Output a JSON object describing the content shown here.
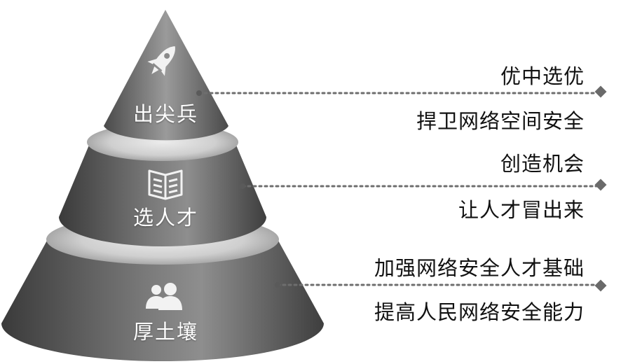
{
  "colors": {
    "cone_dark": "#3a3a3a",
    "cone_mid": "#8c8c8c",
    "cone_light": "#d0d0d0",
    "dotted_line": "#6e6e6e",
    "diamond": "#6a6a6a",
    "icon": "#f2f2f2",
    "text": "#111111"
  },
  "tiers": [
    {
      "icon": "rocket-icon",
      "label": "出尖兵",
      "lines": [
        "优中选优",
        "捍卫网络空间安全"
      ]
    },
    {
      "icon": "book-icon",
      "label": "选人才",
      "lines": [
        "创造机会",
        "让人才冒出来"
      ]
    },
    {
      "icon": "users-icon",
      "label": "厚土壤",
      "lines": [
        "加强网络安全人才基础",
        "提高人民网络安全能力"
      ]
    }
  ]
}
